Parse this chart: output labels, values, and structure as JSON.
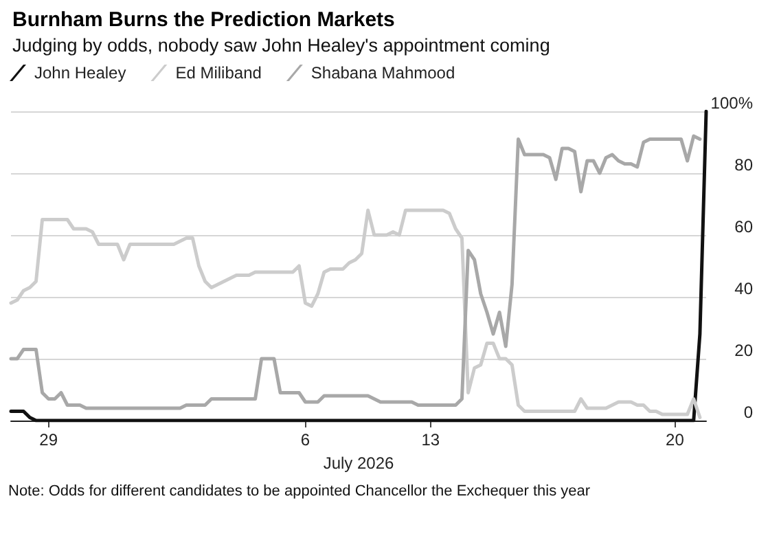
{
  "chart_data": {
    "type": "line",
    "title": "Burnham Burns the Prediction Markets",
    "subtitle": "Judging by odds, nobody saw John Healey's appointment coming",
    "xlabel": "July 2026",
    "categories": [
      null,
      null,
      null,
      null,
      null,
      null,
      "29",
      null,
      null,
      null,
      null,
      null,
      null,
      null,
      null,
      null,
      null,
      null,
      null,
      null,
      null,
      null,
      null,
      null,
      null,
      null,
      null,
      null,
      null,
      null,
      null,
      null,
      null,
      null,
      null,
      null,
      null,
      null,
      null,
      null,
      null,
      null,
      null,
      null,
      null,
      null,
      null,
      "6",
      null,
      null,
      null,
      null,
      null,
      null,
      null,
      null,
      null,
      null,
      null,
      null,
      null,
      null,
      null,
      null,
      null,
      null,
      null,
      "13",
      null,
      null,
      null,
      null,
      null,
      null,
      null,
      null,
      null,
      null,
      null,
      null,
      null,
      null,
      null,
      null,
      null,
      null,
      null,
      null,
      null,
      null,
      null,
      null,
      null,
      null,
      null,
      null,
      null,
      null,
      null,
      null,
      null,
      null,
      null,
      null,
      null,
      null,
      "20",
      null,
      null,
      null,
      null,
      null
    ],
    "series": [
      {
        "name": "John Healey",
        "color": "#111111",
        "values": [
          3,
          3,
          3,
          1,
          0,
          0,
          0,
          0,
          0,
          0,
          0,
          0,
          0,
          0,
          0,
          0,
          0,
          0,
          0,
          0,
          0,
          0,
          0,
          0,
          0,
          0,
          0,
          0,
          0,
          0,
          0,
          0,
          0,
          0,
          0,
          0,
          0,
          0,
          0,
          0,
          0,
          0,
          0,
          0,
          0,
          0,
          0,
          0,
          0,
          0,
          0,
          0,
          0,
          0,
          0,
          0,
          0,
          0,
          0,
          0,
          0,
          0,
          0,
          0,
          0,
          0,
          0,
          0,
          0,
          0,
          0,
          0,
          0,
          0,
          0,
          0,
          0,
          0,
          0,
          0,
          0,
          0,
          0,
          0,
          0,
          0,
          0,
          0,
          0,
          0,
          0,
          0,
          0,
          0,
          0,
          0,
          0,
          0,
          0,
          0,
          0,
          0,
          0,
          0,
          0,
          0,
          0,
          0,
          0,
          0,
          28,
          100
        ]
      },
      {
        "name": "Ed Miliband",
        "color": "#cccccc",
        "values": [
          38,
          39,
          42,
          43,
          45,
          65,
          65,
          65,
          65,
          65,
          62,
          62,
          62,
          61,
          57,
          57,
          57,
          57,
          52,
          57,
          57,
          57,
          57,
          57,
          57,
          57,
          57,
          58,
          59,
          59,
          50,
          45,
          43,
          44,
          45,
          46,
          47,
          47,
          47,
          48,
          48,
          48,
          48,
          48,
          48,
          48,
          50,
          38,
          37,
          41,
          48,
          49,
          49,
          49,
          51,
          52,
          54,
          68,
          60,
          60,
          60,
          61,
          60,
          68,
          68,
          68,
          68,
          68,
          68,
          68,
          67,
          62,
          59,
          9,
          17,
          18,
          25,
          25,
          20,
          20,
          18,
          5,
          3,
          3,
          3,
          3,
          3,
          3,
          3,
          3,
          3,
          7,
          4,
          4,
          4,
          4,
          5,
          6,
          6,
          6,
          5,
          5,
          3,
          3,
          2,
          2,
          2,
          2,
          2,
          7,
          1,
          null
        ]
      },
      {
        "name": "Shabana Mahmood",
        "color": "#a8a8a8",
        "values": [
          20,
          20,
          23,
          23,
          23,
          9,
          7,
          7,
          9,
          5,
          5,
          5,
          4,
          4,
          4,
          4,
          4,
          4,
          4,
          4,
          4,
          4,
          4,
          4,
          4,
          4,
          4,
          4,
          5,
          5,
          5,
          5,
          7,
          7,
          7,
          7,
          7,
          7,
          7,
          7,
          20,
          20,
          20,
          9,
          9,
          9,
          9,
          6,
          6,
          6,
          8,
          8,
          8,
          8,
          8,
          8,
          8,
          8,
          7,
          6,
          6,
          6,
          6,
          6,
          6,
          5,
          5,
          5,
          5,
          5,
          5,
          5,
          7,
          55,
          52,
          41,
          35,
          28,
          35,
          24,
          44,
          91,
          86,
          86,
          86,
          86,
          85,
          78,
          88,
          88,
          87,
          74,
          84,
          84,
          80,
          85,
          86,
          84,
          83,
          83,
          82,
          90,
          91,
          91,
          91,
          91,
          91,
          91,
          84,
          92,
          91,
          null
        ]
      }
    ],
    "ylim": [
      0,
      100
    ],
    "yticks": [
      0,
      20,
      40,
      60,
      80,
      {
        "value": 100,
        "label": "100%"
      }
    ],
    "grid": "y",
    "legend": "top left",
    "marker": "none",
    "line_style": "solid",
    "annotations": [
      "Note: Odds for different candidates to be appointed Chancellor the Exchequer this year"
    ]
  }
}
